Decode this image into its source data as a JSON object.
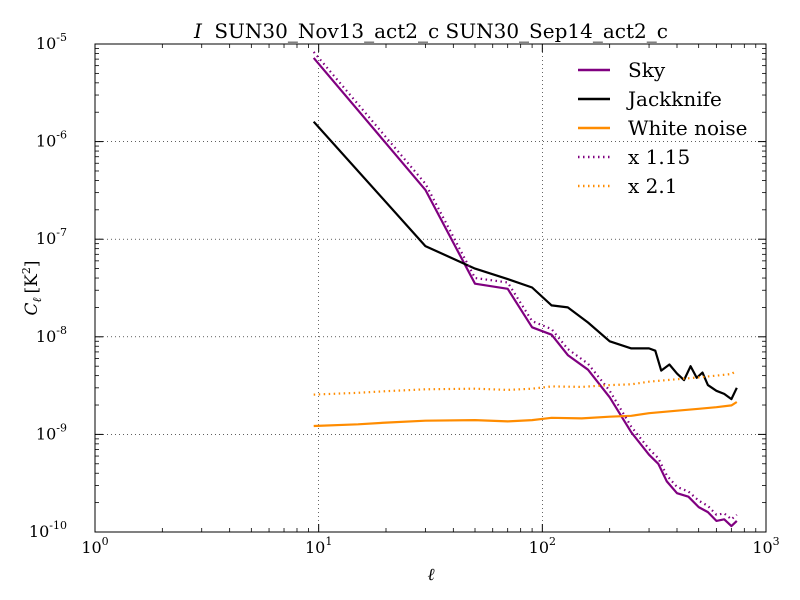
{
  "chart_data": {
    "type": "line",
    "title": {
      "symbol": "I",
      "text": "SUN30_Nov13_act2_c SUN30_Sep14_act2_c"
    },
    "xlabel": "ℓ",
    "ylabel": {
      "symbol": "C",
      "subscript": "ℓ",
      "unit": "[K",
      "unit_exp": "2",
      "unit_close": "]"
    },
    "xscale": "log",
    "yscale": "log",
    "xlim": [
      1,
      1000
    ],
    "ylim": [
      1e-10,
      1e-05
    ],
    "grid": true,
    "legend_position": "top-right",
    "x_ticks": [
      {
        "value": 1,
        "base": "10",
        "exp": "0"
      },
      {
        "value": 10,
        "base": "10",
        "exp": "1"
      },
      {
        "value": 100,
        "base": "10",
        "exp": "2"
      },
      {
        "value": 1000,
        "base": "10",
        "exp": "3"
      }
    ],
    "y_ticks": [
      {
        "value": 1e-10,
        "base": "10",
        "exp": "-10"
      },
      {
        "value": 1e-09,
        "base": "10",
        "exp": "-9"
      },
      {
        "value": 1e-08,
        "base": "10",
        "exp": "-8"
      },
      {
        "value": 1e-07,
        "base": "10",
        "exp": "-7"
      },
      {
        "value": 1e-06,
        "base": "10",
        "exp": "-6"
      },
      {
        "value": 1e-05,
        "base": "10",
        "exp": "-5"
      }
    ],
    "series": [
      {
        "name": "Sky",
        "color": "#800080",
        "style": "solid",
        "points": [
          [
            9.5,
            7.2e-06
          ],
          [
            30,
            3.2e-07
          ],
          [
            50,
            3.5e-08
          ],
          [
            70,
            3.1e-08
          ],
          [
            90,
            1.25e-08
          ],
          [
            110,
            1.05e-08
          ],
          [
            130,
            6.5e-09
          ],
          [
            160,
            4.6e-09
          ],
          [
            200,
            2.4e-09
          ],
          [
            250,
            1.05e-09
          ],
          [
            300,
            6.2e-10
          ],
          [
            330,
            5e-10
          ],
          [
            360,
            3.3e-10
          ],
          [
            400,
            2.5e-10
          ],
          [
            450,
            2.3e-10
          ],
          [
            500,
            1.8e-10
          ],
          [
            550,
            1.6e-10
          ],
          [
            600,
            1.3e-10
          ],
          [
            650,
            1.35e-10
          ],
          [
            700,
            1.15e-10
          ],
          [
            740,
            1.3e-10
          ]
        ]
      },
      {
        "name": "Jackknife",
        "color": "#000000",
        "style": "solid",
        "points": [
          [
            9.5,
            1.6e-06
          ],
          [
            30,
            8.5e-08
          ],
          [
            50,
            5e-08
          ],
          [
            70,
            3.9e-08
          ],
          [
            90,
            3.2e-08
          ],
          [
            110,
            2.1e-08
          ],
          [
            130,
            2e-08
          ],
          [
            160,
            1.4e-08
          ],
          [
            200,
            9e-09
          ],
          [
            250,
            7.6e-09
          ],
          [
            300,
            7.6e-09
          ],
          [
            320,
            7.2e-09
          ],
          [
            340,
            4.5e-09
          ],
          [
            370,
            5.2e-09
          ],
          [
            400,
            4.2e-09
          ],
          [
            430,
            3.6e-09
          ],
          [
            460,
            5e-09
          ],
          [
            490,
            3.8e-09
          ],
          [
            520,
            4.3e-09
          ],
          [
            550,
            3.2e-09
          ],
          [
            600,
            2.8e-09
          ],
          [
            650,
            2.6e-09
          ],
          [
            700,
            2.3e-09
          ],
          [
            740,
            3e-09
          ]
        ]
      },
      {
        "name": "White noise",
        "color": "#ff8c00",
        "style": "solid",
        "points": [
          [
            9.5,
            1.22e-09
          ],
          [
            15,
            1.27e-09
          ],
          [
            20,
            1.32e-09
          ],
          [
            30,
            1.38e-09
          ],
          [
            50,
            1.4e-09
          ],
          [
            70,
            1.36e-09
          ],
          [
            90,
            1.4e-09
          ],
          [
            110,
            1.48e-09
          ],
          [
            150,
            1.46e-09
          ],
          [
            200,
            1.52e-09
          ],
          [
            250,
            1.55e-09
          ],
          [
            300,
            1.65e-09
          ],
          [
            400,
            1.75e-09
          ],
          [
            500,
            1.83e-09
          ],
          [
            600,
            1.9e-09
          ],
          [
            700,
            1.98e-09
          ],
          [
            740,
            2.15e-09
          ]
        ]
      },
      {
        "name": "x 1.15",
        "color": "#800080",
        "style": "dotted",
        "points": [
          [
            9.5,
            8.3e-06
          ],
          [
            30,
            3.7e-07
          ],
          [
            50,
            4e-08
          ],
          [
            70,
            3.6e-08
          ],
          [
            90,
            1.45e-08
          ],
          [
            110,
            1.2e-08
          ],
          [
            130,
            7.5e-09
          ],
          [
            160,
            5.3e-09
          ],
          [
            200,
            2.8e-09
          ],
          [
            250,
            1.2e-09
          ],
          [
            300,
            7.1e-10
          ],
          [
            330,
            5.7e-10
          ],
          [
            360,
            3.8e-10
          ],
          [
            400,
            2.9e-10
          ],
          [
            450,
            2.6e-10
          ],
          [
            500,
            2.1e-10
          ],
          [
            550,
            1.85e-10
          ],
          [
            600,
            1.5e-10
          ],
          [
            650,
            1.55e-10
          ],
          [
            700,
            1.35e-10
          ],
          [
            740,
            1.5e-10
          ]
        ]
      },
      {
        "name": "x 2.1",
        "color": "#ff8c00",
        "style": "dotted",
        "points": [
          [
            9.5,
            2.56e-09
          ],
          [
            15,
            2.67e-09
          ],
          [
            20,
            2.77e-09
          ],
          [
            30,
            2.9e-09
          ],
          [
            50,
            2.94e-09
          ],
          [
            70,
            2.86e-09
          ],
          [
            90,
            2.94e-09
          ],
          [
            110,
            3.1e-09
          ],
          [
            150,
            3.07e-09
          ],
          [
            200,
            3.2e-09
          ],
          [
            250,
            3.26e-09
          ],
          [
            300,
            3.47e-09
          ],
          [
            400,
            3.68e-09
          ],
          [
            500,
            3.84e-09
          ],
          [
            600,
            4e-09
          ],
          [
            700,
            4.16e-09
          ],
          [
            740,
            4.5e-09
          ]
        ]
      }
    ]
  }
}
